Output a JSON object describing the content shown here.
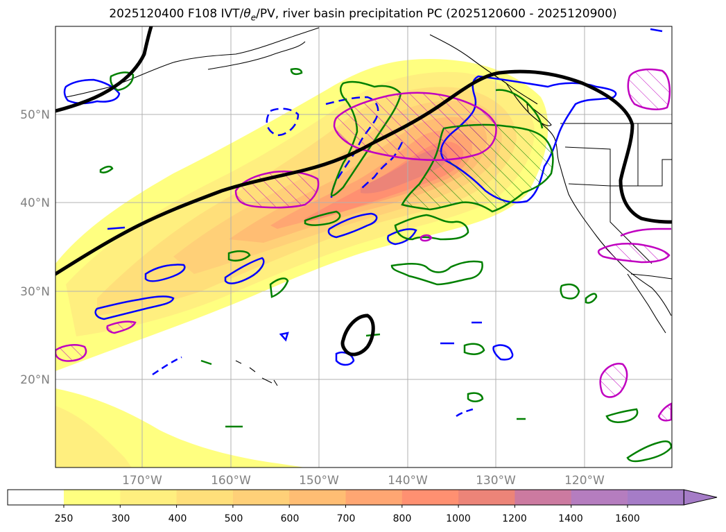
{
  "title": {
    "prefix": "2025120400 F108 IVT/",
    "theta_symbol": "θ",
    "theta_sub": "e",
    "suffix": "/PV, river basin precipitation PC (2025120600 - 2025120900)"
  },
  "axes": {
    "lon_labels": [
      "170°W",
      "160°W",
      "150°W",
      "140°W",
      "130°W",
      "120°W"
    ],
    "lat_labels": [
      "50°N",
      "40°N",
      "30°N",
      "20°N"
    ],
    "lon_range": [
      -180,
      -110
    ],
    "lat_range": [
      10,
      60
    ]
  },
  "colorbar": {
    "ticks": [
      "250",
      "300",
      "400",
      "500",
      "600",
      "700",
      "800",
      "1000",
      "1200",
      "1400",
      "1600"
    ],
    "colors": [
      "#ffffff",
      "#ffff80",
      "#ffef7f",
      "#ffdf7a",
      "#ffd078",
      "#ffbd73",
      "#ffa672",
      "#ff9071",
      "#ec8478",
      "#cc7aa0",
      "#b57dbf",
      "#a57cc7"
    ],
    "extend": "max"
  },
  "colors": {
    "pv_line": "#000000",
    "theta_e_line": "#0000ff",
    "precip_green": "#008000",
    "precip_magenta": "#c000c0",
    "grid": "#b0b0b0",
    "coast": "#000000"
  }
}
